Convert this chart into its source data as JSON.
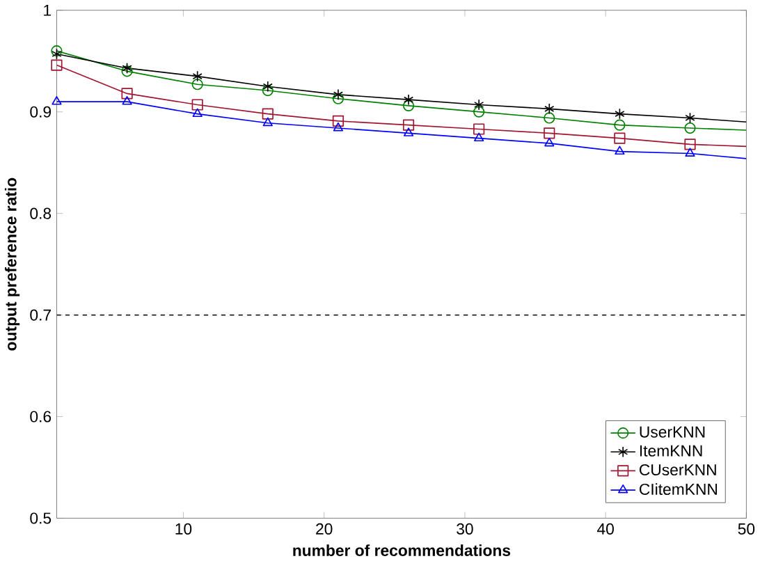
{
  "chart_data": {
    "type": "line",
    "xlabel": "number of recommendations",
    "ylabel": "output preference ratio",
    "x": [
      1,
      6,
      11,
      16,
      21,
      26,
      31,
      36,
      41,
      46,
      50
    ],
    "series": [
      {
        "name": "UserKNN",
        "color": "#008000",
        "marker": "circle",
        "values": [
          0.96,
          0.94,
          0.927,
          0.921,
          0.913,
          0.906,
          0.9,
          0.894,
          0.887,
          0.884,
          0.882
        ]
      },
      {
        "name": "ItemKNN",
        "color": "#000000",
        "marker": "cross",
        "values": [
          0.957,
          0.943,
          0.935,
          0.925,
          0.917,
          0.912,
          0.907,
          0.903,
          0.898,
          0.894,
          0.89
        ]
      },
      {
        "name": "CUserKNN",
        "color": "#a2142f",
        "marker": "square",
        "values": [
          0.946,
          0.918,
          0.907,
          0.898,
          0.891,
          0.887,
          0.883,
          0.879,
          0.874,
          0.868,
          0.866
        ]
      },
      {
        "name": "CIitemKNN",
        "color": "#0000ff",
        "marker": "triangle",
        "values": [
          0.91,
          0.91,
          0.898,
          0.889,
          0.884,
          0.879,
          0.874,
          0.869,
          0.861,
          0.859,
          0.854
        ]
      }
    ],
    "xlim": [
      1,
      50
    ],
    "xticks": [
      10,
      20,
      30,
      40,
      50
    ],
    "ylim": [
      0.5,
      1
    ],
    "yticks": [
      0.5,
      0.6,
      0.7,
      0.8,
      0.9,
      1
    ],
    "ref_lines": [
      {
        "axis": "y",
        "value": 0.7,
        "color": "#000000",
        "line_style": "dashed"
      }
    ],
    "grid": false,
    "legend": "bottom right",
    "line_style": "solid"
  }
}
